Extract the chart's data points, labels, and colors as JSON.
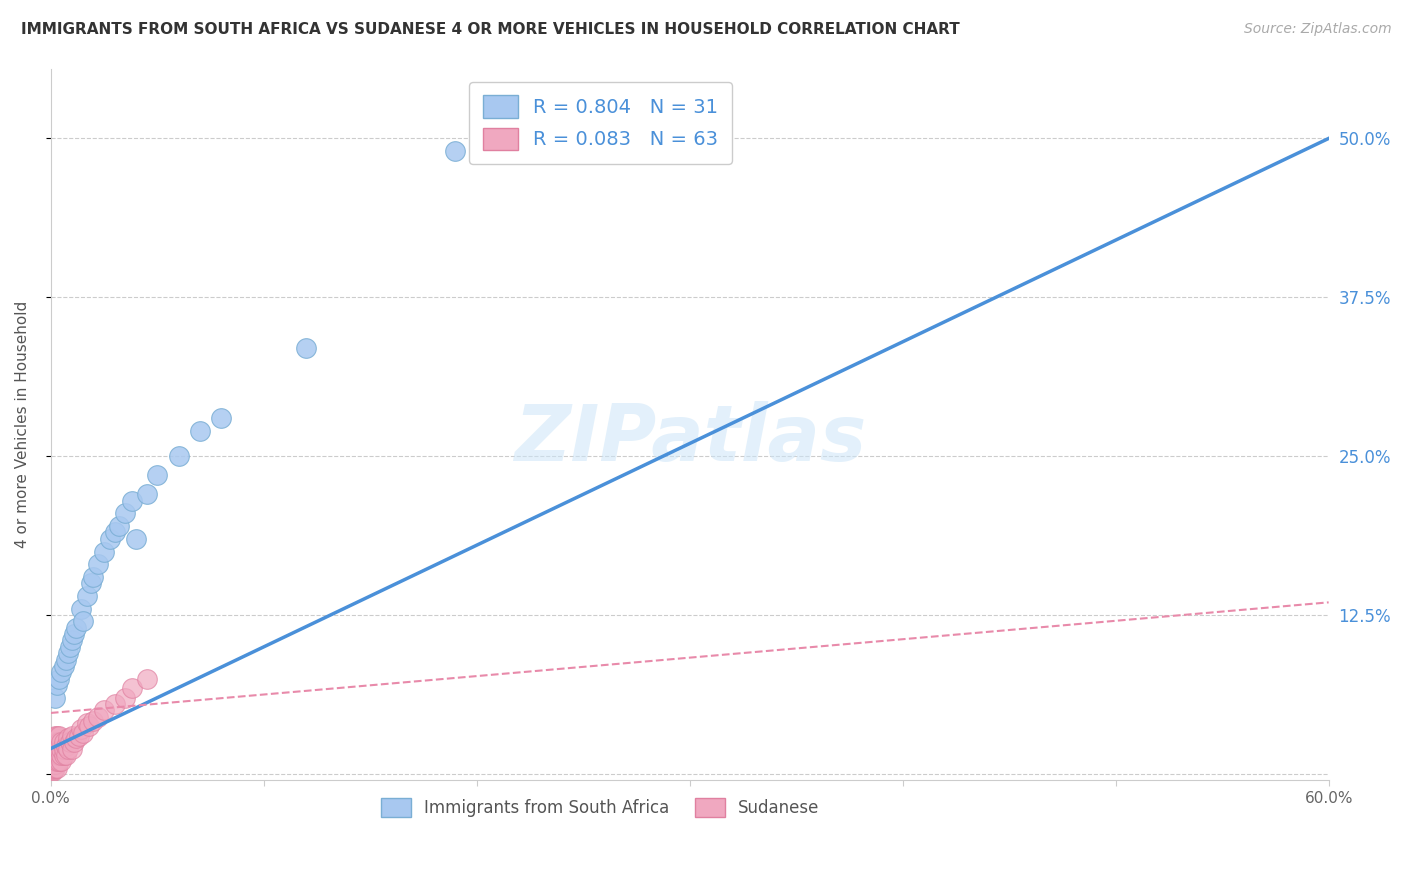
{
  "title": "IMMIGRANTS FROM SOUTH AFRICA VS SUDANESE 4 OR MORE VEHICLES IN HOUSEHOLD CORRELATION CHART",
  "source": "Source: ZipAtlas.com",
  "ylabel": "4 or more Vehicles in Household",
  "xlim": [
    0.0,
    0.6
  ],
  "ylim": [
    -0.005,
    0.555
  ],
  "xticks": [
    0.0,
    0.1,
    0.2,
    0.3,
    0.4,
    0.5,
    0.6
  ],
  "xticklabels": [
    "0.0%",
    "",
    "",
    "",
    "",
    "",
    "60.0%"
  ],
  "yticks": [
    0.0,
    0.125,
    0.25,
    0.375,
    0.5
  ],
  "yticklabels": [
    "",
    "12.5%",
    "25.0%",
    "37.5%",
    "50.0%"
  ],
  "legend_title_south_africa": "Immigrants from South Africa",
  "legend_title_sudanese": "Sudanese",
  "watermark": "ZIPatlas",
  "blue_line_color": "#4a90d9",
  "pink_line_color": "#e88aaa",
  "blue_scatter_color": "#a8c8f0",
  "pink_scatter_color": "#f0a8c0",
  "blue_scatter_edge": "#7aaed4",
  "pink_scatter_edge": "#e080a0",
  "grid_color": "#cccccc",
  "title_color": "#333333",
  "tick_label_color_right": "#4a90d9",
  "background_color": "#ffffff",
  "south_africa_R": 0.804,
  "south_africa_N": 31,
  "sudanese_R": 0.083,
  "sudanese_N": 63,
  "south_africa_x": [
    0.002,
    0.003,
    0.004,
    0.005,
    0.006,
    0.007,
    0.008,
    0.009,
    0.01,
    0.011,
    0.012,
    0.014,
    0.015,
    0.017,
    0.019,
    0.02,
    0.022,
    0.025,
    0.028,
    0.03,
    0.032,
    0.035,
    0.038,
    0.04,
    0.045,
    0.05,
    0.06,
    0.07,
    0.08,
    0.12,
    0.19
  ],
  "south_africa_y": [
    0.06,
    0.07,
    0.075,
    0.08,
    0.085,
    0.09,
    0.095,
    0.1,
    0.105,
    0.11,
    0.115,
    0.13,
    0.12,
    0.14,
    0.15,
    0.155,
    0.165,
    0.175,
    0.185,
    0.19,
    0.195,
    0.205,
    0.215,
    0.185,
    0.22,
    0.235,
    0.25,
    0.27,
    0.28,
    0.335,
    0.49
  ],
  "sudanese_x": [
    0.001,
    0.001,
    0.001,
    0.001,
    0.001,
    0.001,
    0.001,
    0.001,
    0.001,
    0.001,
    0.001,
    0.001,
    0.001,
    0.002,
    0.002,
    0.002,
    0.002,
    0.002,
    0.002,
    0.002,
    0.002,
    0.002,
    0.002,
    0.002,
    0.003,
    0.003,
    0.003,
    0.003,
    0.003,
    0.003,
    0.004,
    0.004,
    0.004,
    0.004,
    0.004,
    0.005,
    0.005,
    0.005,
    0.005,
    0.006,
    0.006,
    0.006,
    0.007,
    0.007,
    0.008,
    0.008,
    0.009,
    0.01,
    0.01,
    0.011,
    0.012,
    0.013,
    0.014,
    0.015,
    0.017,
    0.018,
    0.02,
    0.022,
    0.025,
    0.03,
    0.035,
    0.038,
    0.045
  ],
  "sudanese_y": [
    0.002,
    0.003,
    0.004,
    0.005,
    0.006,
    0.007,
    0.008,
    0.009,
    0.01,
    0.011,
    0.012,
    0.015,
    0.018,
    0.005,
    0.008,
    0.01,
    0.012,
    0.015,
    0.018,
    0.02,
    0.022,
    0.025,
    0.028,
    0.03,
    0.005,
    0.01,
    0.015,
    0.02,
    0.025,
    0.03,
    0.01,
    0.015,
    0.02,
    0.025,
    0.03,
    0.01,
    0.015,
    0.02,
    0.025,
    0.015,
    0.02,
    0.025,
    0.015,
    0.022,
    0.02,
    0.028,
    0.025,
    0.02,
    0.03,
    0.025,
    0.028,
    0.03,
    0.035,
    0.032,
    0.04,
    0.038,
    0.042,
    0.045,
    0.05,
    0.055,
    0.06,
    0.068,
    0.075
  ],
  "blue_line_x": [
    0.0,
    0.6
  ],
  "blue_line_y": [
    0.02,
    0.5
  ],
  "pink_line_x": [
    0.0,
    0.6
  ],
  "pink_line_y": [
    0.048,
    0.135
  ]
}
